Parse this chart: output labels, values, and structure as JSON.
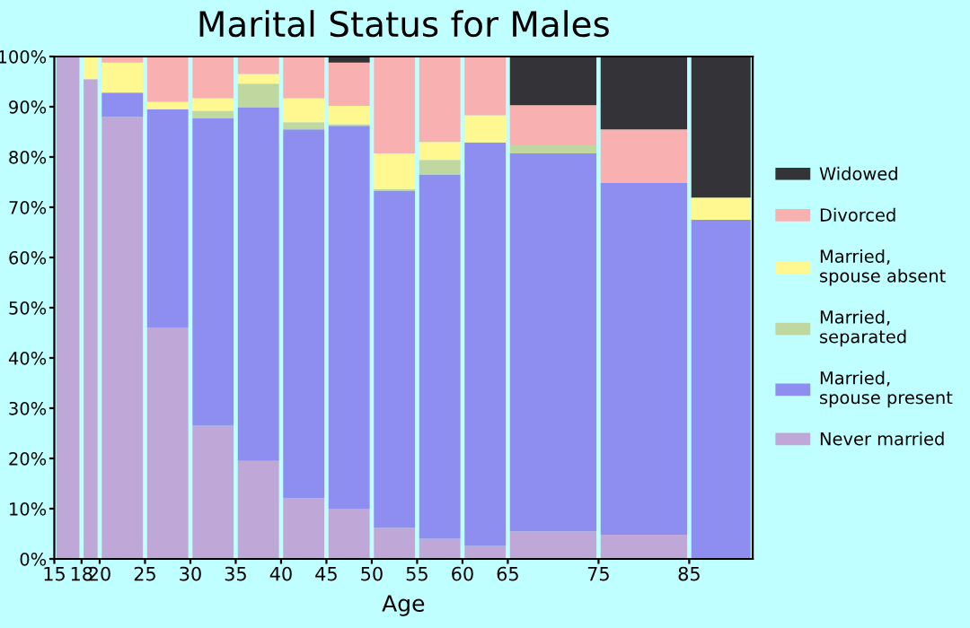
{
  "chart_data": {
    "type": "bar",
    "stacked": true,
    "title": "Marital Status for Males",
    "xlabel": "Age",
    "x": [
      16.5,
      19,
      22.5,
      27.5,
      32.5,
      37.5,
      42.5,
      47.5,
      52.5,
      57.5,
      62.5,
      70,
      80,
      88.5
    ],
    "xlim": [
      15,
      92
    ],
    "xticks": [
      15,
      18,
      20,
      25,
      30,
      35,
      40,
      45,
      50,
      55,
      60,
      65,
      75,
      85
    ],
    "ylim": [
      0,
      100
    ],
    "yticks": [
      {
        "value": 0,
        "label": "0%"
      },
      {
        "value": 10,
        "label": "10%"
      },
      {
        "value": 20,
        "label": "20%"
      },
      {
        "value": 30,
        "label": "30%"
      },
      {
        "value": 40,
        "label": "40%"
      },
      {
        "value": 50,
        "label": "50%"
      },
      {
        "value": 60,
        "label": "60%"
      },
      {
        "value": 70,
        "label": "70%"
      },
      {
        "value": 80,
        "label": "80%"
      },
      {
        "value": 90,
        "label": "90%"
      },
      {
        "value": 100,
        "label": "100%"
      }
    ],
    "grid": false,
    "legend": "right",
    "series": [
      {
        "name": "Never married",
        "color": "#bfa8d8",
        "values": [
          100,
          95.5,
          88,
          46,
          26.5,
          19.5,
          12.1,
          9.9,
          6.2,
          4.0,
          2.6,
          5.5,
          4.8,
          0
        ]
      },
      {
        "name": "Married,\nspouse present",
        "color": "#8e8ef0",
        "values": [
          0,
          0,
          4.8,
          43.5,
          61.2,
          70.4,
          73.4,
          76.3,
          67.1,
          72.5,
          80.3,
          75.2,
          70.0,
          67.5
        ]
      },
      {
        "name": "Married,\nseparated",
        "color": "#c0d8a0",
        "values": [
          0,
          0,
          0,
          0,
          1.5,
          4.7,
          1.4,
          0.3,
          0.3,
          2.9,
          0,
          1.6,
          0,
          0
        ]
      },
      {
        "name": "Married,\nspouse absent",
        "color": "#fff890",
        "values": [
          0,
          4.5,
          6.0,
          1.5,
          2.5,
          1.9,
          4.8,
          3.7,
          7.1,
          3.6,
          5.4,
          0,
          0,
          4.4
        ]
      },
      {
        "name": "Divorced",
        "color": "#f8b0b0",
        "values": [
          0,
          0,
          1.2,
          9.0,
          8.3,
          3.5,
          8.3,
          8.6,
          19.3,
          17.0,
          11.7,
          8.0,
          10.7,
          0
        ]
      },
      {
        "name": "Widowed",
        "color": "#333338",
        "values": [
          0,
          0,
          0,
          0,
          0,
          0,
          0,
          1.2,
          0,
          0,
          0,
          9.7,
          14.5,
          28.1
        ]
      }
    ]
  }
}
